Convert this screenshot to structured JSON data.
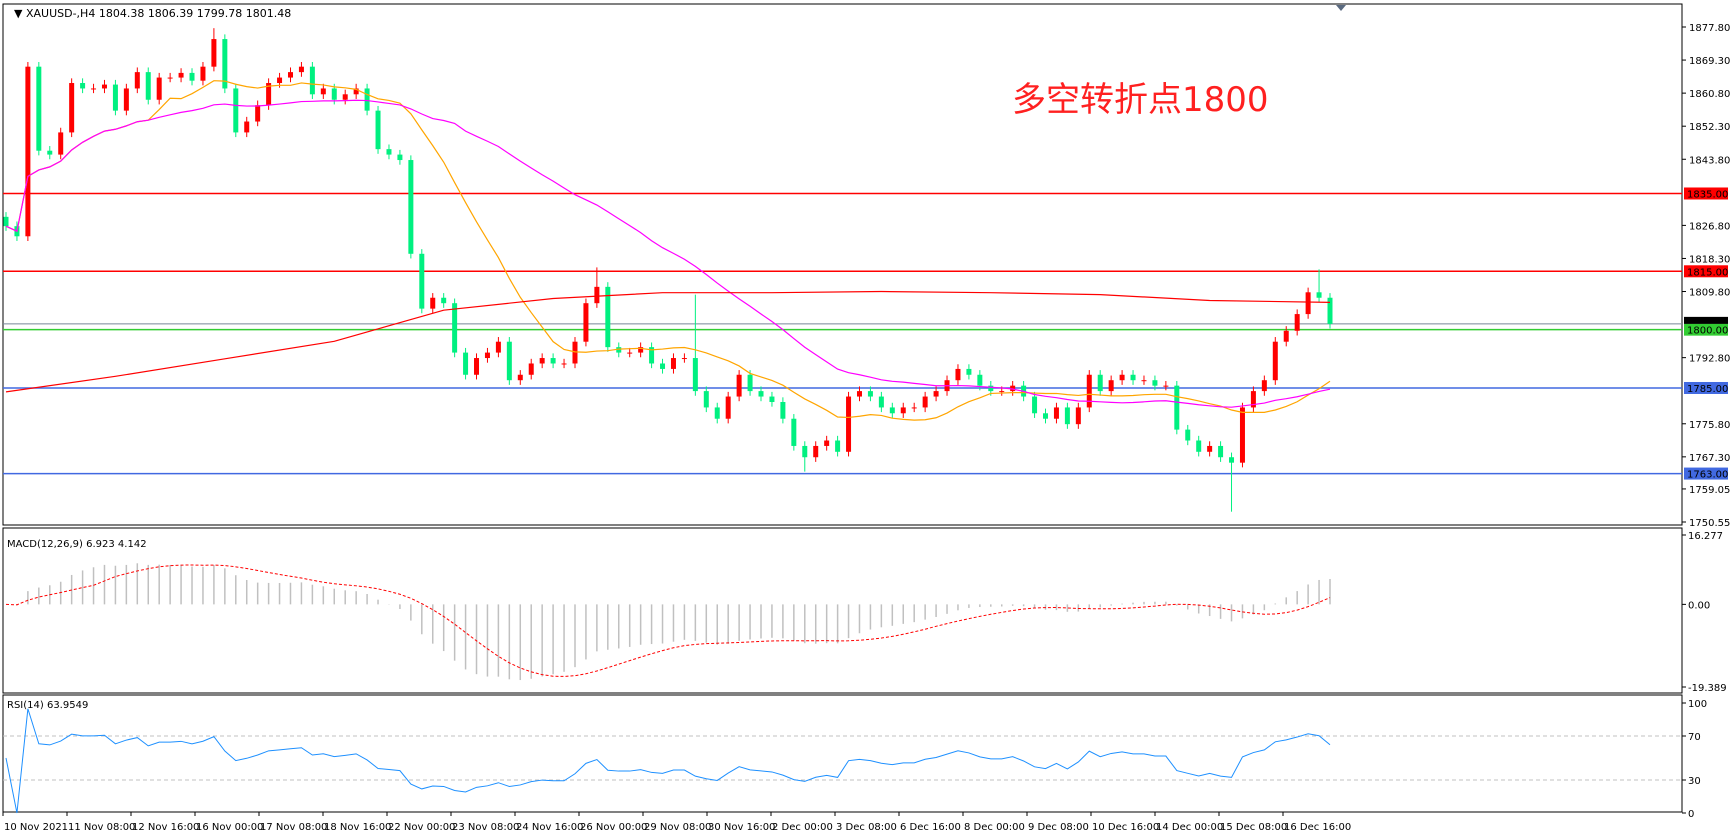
{
  "header": {
    "symbol": "XAUUSD-,H4",
    "ohlc": "1804.38 1806.39 1799.78 1801.48"
  },
  "annotation": "多空转折点1800",
  "colors": {
    "up": "#ff0000",
    "down": "#00f080",
    "ma_fast": "#ffa500",
    "ma_mid": "#ff00ff",
    "ma_slow": "#ff0000",
    "rsi": "#1e90ff",
    "macd_hist": "#c0c0c0",
    "macd_signal": "#ff0000"
  },
  "chart_data": {
    "type": "candlestick",
    "symbol": "XAUUSD-",
    "timeframe": "H4",
    "ylim": [
      1750.55,
      1877.8
    ],
    "price_ticks": [
      "1877.80",
      "1869.30",
      "1860.80",
      "1852.30",
      "1843.80",
      "1826.80",
      "1818.30",
      "1809.80",
      "1792.80",
      "1775.80",
      "1767.30",
      "1759.05",
      "1750.55"
    ],
    "closes": [
      1826.6,
      1824.0,
      1867.6,
      1846.0,
      1845.0,
      1850.7,
      1863.4,
      1862.0,
      1862.0,
      1863.0,
      1856.3,
      1862.0,
      1866.2,
      1859.1,
      1864.8,
      1864.8,
      1866.0,
      1864.0,
      1867.6,
      1874.7,
      1862.0,
      1850.7,
      1853.5,
      1857.7,
      1863.4,
      1864.8,
      1866.2,
      1867.6,
      1860.5,
      1862.0,
      1859.1,
      1860.5,
      1862.0,
      1856.3,
      1846.4,
      1845.0,
      1843.6,
      1819.5,
      1805.4,
      1808.2,
      1806.8,
      1794.1,
      1788.4,
      1792.7,
      1794.1,
      1796.9,
      1787.0,
      1788.4,
      1791.3,
      1792.7,
      1791.3,
      1791.3,
      1796.9,
      1806.8,
      1811.0,
      1795.5,
      1794.1,
      1794.1,
      1795.5,
      1791.3,
      1789.9,
      1792.7,
      1792.7,
      1784.2,
      1780.0,
      1777.1,
      1782.8,
      1788.4,
      1784.2,
      1782.8,
      1781.4,
      1777.1,
      1770.1,
      1767.2,
      1770.1,
      1771.5,
      1768.6,
      1782.8,
      1784.2,
      1782.8,
      1780.0,
      1778.5,
      1780.0,
      1780.0,
      1782.8,
      1784.2,
      1787.0,
      1789.9,
      1788.4,
      1785.6,
      1784.2,
      1784.2,
      1785.6,
      1782.8,
      1778.5,
      1777.1,
      1780.0,
      1775.7,
      1780.0,
      1788.4,
      1784.2,
      1787.0,
      1788.4,
      1787.0,
      1787.0,
      1785.6,
      1785.6,
      1774.3,
      1771.5,
      1768.6,
      1770.1,
      1767.2,
      1765.8,
      1780.0,
      1784.2,
      1787.0,
      1796.9,
      1799.7,
      1804.0,
      1809.6,
      1808.2,
      1801.48
    ],
    "first_open": 1829.0,
    "wick_extremes": [
      {
        "i": 19,
        "high": 1877.5
      },
      {
        "i": 54,
        "high": 1816.0
      },
      {
        "i": 63,
        "high": 1809.0
      },
      {
        "i": 112,
        "low": 1753.2
      },
      {
        "i": 120,
        "high": 1815.5
      },
      {
        "i": 73,
        "low": 1763.5
      }
    ],
    "ma_slow": {
      "index": [
        0,
        10,
        20,
        30,
        40,
        50,
        60,
        70,
        80,
        90,
        100,
        110,
        121
      ],
      "values": [
        1784,
        1788,
        1792.5,
        1797,
        1805,
        1808,
        1809.5,
        1809.5,
        1809.8,
        1809.5,
        1809,
        1807.5,
        1807
      ]
    },
    "horizontal_lines": [
      {
        "price": 1835.0,
        "label": "1835.00",
        "color": "#ff0000"
      },
      {
        "price": 1815.0,
        "label": "1815.00",
        "color": "#ff0000"
      },
      {
        "price": 1800.0,
        "label": "1800.00",
        "color": "#32cd32"
      },
      {
        "price": 1785.0,
        "label": "1785.00",
        "color": "#4169e1"
      },
      {
        "price": 1763.0,
        "label": "1763.00",
        "color": "#4169e1"
      }
    ],
    "bid_line": {
      "price": 1801.48,
      "label": "1801.48",
      "color": "#778899"
    },
    "time_labels": [
      "10 Nov 2021",
      "11 Nov 08:00",
      "12 Nov 16:00",
      "16 Nov 00:00",
      "17 Nov 08:00",
      "18 Nov 16:00",
      "22 Nov 00:00",
      "23 Nov 08:00",
      "24 Nov 16:00",
      "26 Nov 00:00",
      "29 Nov 08:00",
      "30 Nov 16:00",
      "2 Dec 00:00",
      "3 Dec 08:00",
      "6 Dec 16:00",
      "8 Dec 00:00",
      "9 Dec 08:00",
      "10 Dec 16:00",
      "14 Dec 00:00",
      "15 Dec 08:00",
      "16 Dec 16:00"
    ],
    "macd": {
      "label": "MACD(12,26,9) 6.923 4.142",
      "ylim": [
        -19.389,
        16.277
      ],
      "ticks": [
        "16.277",
        "0.00",
        "-19.389"
      ]
    },
    "rsi": {
      "label": "RSI(14) 63.9549",
      "ylim": [
        0,
        100
      ],
      "ticks": [
        "100",
        "70",
        "30",
        "0"
      ],
      "levels": [
        70,
        30
      ]
    }
  }
}
